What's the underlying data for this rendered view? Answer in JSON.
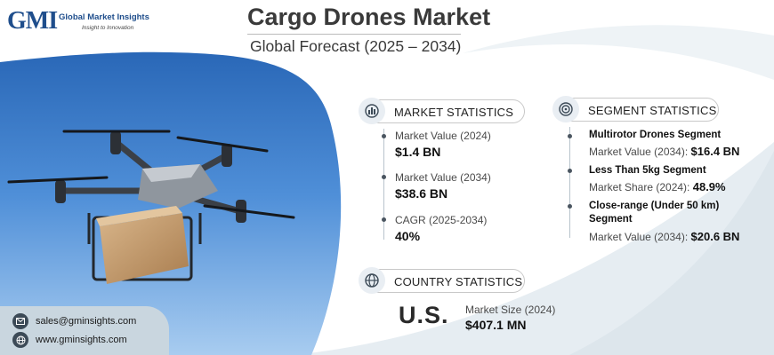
{
  "brand": {
    "logo_mark": "GMI",
    "name": "Global Market Insights",
    "tagline": "Insight to Innovation"
  },
  "header": {
    "title": "Cargo Drones Market",
    "subtitle": "Global Forecast (2025 – 2034)"
  },
  "market_statistics": {
    "heading": "MARKET STATISTICS",
    "icon": "globe-chart-icon",
    "items": [
      {
        "label": "Market Value (2024)",
        "value": "$1.4 BN"
      },
      {
        "label": "Market Value (2034)",
        "value": "$38.6 BN"
      },
      {
        "label": "CAGR (2025-2034)",
        "value": "40%"
      }
    ]
  },
  "segment_statistics": {
    "heading": "SEGMENT STATISTICS",
    "icon": "target-icon",
    "items": [
      {
        "name": "Multirotor Drones Segment",
        "metric": "Market Value (2034):",
        "value": "$16.4 BN"
      },
      {
        "name": "Less Than 5kg Segment",
        "metric": "Market Share (2024):",
        "value": "48.9%"
      },
      {
        "name_line1": "Close-range (Under 50 km)",
        "name_line2": "Segment",
        "metric": "Market Value (2034):",
        "value": "$20.6 BN"
      }
    ]
  },
  "country_statistics": {
    "heading": "COUNTRY STATISTICS",
    "icon": "globe-icon",
    "country": "U.S.",
    "label": "Market Size (2024)",
    "value": "$407.1 MN"
  },
  "contact": {
    "email": "sales@gminsights.com",
    "website": "www.gminsights.com"
  },
  "colors": {
    "sky_top": "#1f5fb0",
    "sky_bottom": "#9cc6ef",
    "swoosh": "#d7e2ea",
    "brand_blue": "#1f4e8c"
  }
}
